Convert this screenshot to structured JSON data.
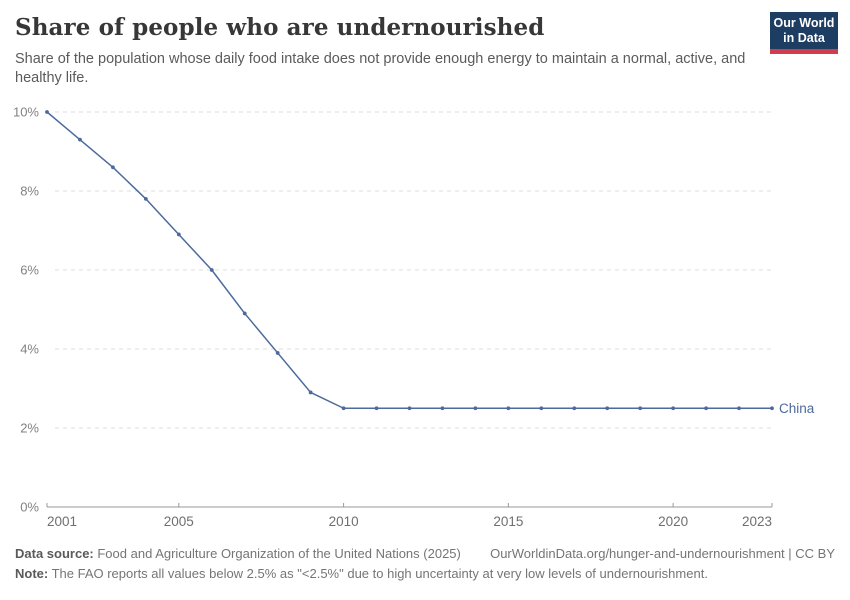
{
  "header": {
    "title": "Share of people who are undernourished",
    "subtitle": "Share of the population whose daily food intake does not provide enough energy to maintain a normal, active, and healthy life.",
    "logo_line1": "Our World",
    "logo_line2": "in Data"
  },
  "chart_data": {
    "type": "line",
    "title": "Share of people who are undernourished",
    "xlabel": "",
    "ylabel": "",
    "x": [
      2001,
      2002,
      2003,
      2004,
      2005,
      2006,
      2007,
      2008,
      2009,
      2010,
      2011,
      2012,
      2013,
      2014,
      2015,
      2016,
      2017,
      2018,
      2019,
      2020,
      2021,
      2022,
      2023
    ],
    "series": [
      {
        "name": "China",
        "color": "#4C6A9C",
        "values": [
          10,
          9.3,
          8.6,
          7.8,
          6.9,
          6,
          4.9,
          3.9,
          2.9,
          2.5,
          2.5,
          2.5,
          2.5,
          2.5,
          2.5,
          2.5,
          2.5,
          2.5,
          2.5,
          2.5,
          2.5,
          2.5,
          2.5
        ]
      }
    ],
    "xlim": [
      2001,
      2023
    ],
    "ylim": [
      0,
      10
    ],
    "x_ticks": [
      2001,
      2005,
      2010,
      2015,
      2020,
      2023
    ],
    "y_ticks": [
      0,
      2,
      4,
      6,
      8,
      10
    ],
    "y_tick_suffix": "%",
    "grid": "horizontal-dashed",
    "legend_position": "end-of-line-label",
    "entity_label": "China"
  },
  "footer": {
    "data_source_label": "Data source:",
    "data_source_text": " Food and Agriculture Organization of the United Nations (2025)",
    "link": "OurWorldinData.org/hunger-and-undernourishment | CC BY",
    "note_label": "Note:",
    "note_text": " The FAO reports all values below 2.5% as \"<2.5%\" due to high uncertainty at very low levels of undernourishment."
  },
  "colors": {
    "line": "#4C6A9C",
    "gridline": "#dcdcdc",
    "axis": "#999999",
    "title": "#373737",
    "subtitle": "#5b5b5b",
    "logo_navy": "#1d3d63",
    "logo_red": "#d13d4f"
  }
}
